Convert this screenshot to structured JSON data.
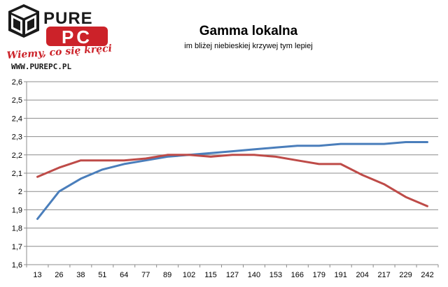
{
  "logo": {
    "brand_top": "PURE",
    "brand_bottom": "PC",
    "slogan": "Wiemy, co się kręci !",
    "url": "WWW.PUREPC.PL"
  },
  "chart_data": {
    "type": "line",
    "title": "Gamma lokalna",
    "subtitle": "im bliżej niebieskiej krzywej tym lepiej",
    "xlabel": "",
    "ylabel": "",
    "categories": [
      "13",
      "26",
      "38",
      "51",
      "64",
      "77",
      "89",
      "102",
      "115",
      "127",
      "140",
      "153",
      "166",
      "179",
      "191",
      "204",
      "217",
      "229",
      "242"
    ],
    "ylim": [
      1.6,
      2.6
    ],
    "yticks": [
      "1,6",
      "1,7",
      "1,8",
      "1,9",
      "2",
      "2,1",
      "2,2",
      "2,3",
      "2,4",
      "2,5",
      "2,6"
    ],
    "grid": true,
    "legend": "none",
    "series": [
      {
        "color": "#4a7ebb",
        "values": [
          1.85,
          2.0,
          2.07,
          2.12,
          2.15,
          2.17,
          2.19,
          2.2,
          2.21,
          2.22,
          2.23,
          2.24,
          2.25,
          2.25,
          2.26,
          2.26,
          2.26,
          2.27,
          2.27
        ]
      },
      {
        "color": "#be4b48",
        "values": [
          2.08,
          2.13,
          2.17,
          2.17,
          2.17,
          2.18,
          2.2,
          2.2,
          2.19,
          2.2,
          2.2,
          2.19,
          2.17,
          2.15,
          2.15,
          2.09,
          2.04,
          1.97,
          1.92
        ]
      }
    ]
  }
}
